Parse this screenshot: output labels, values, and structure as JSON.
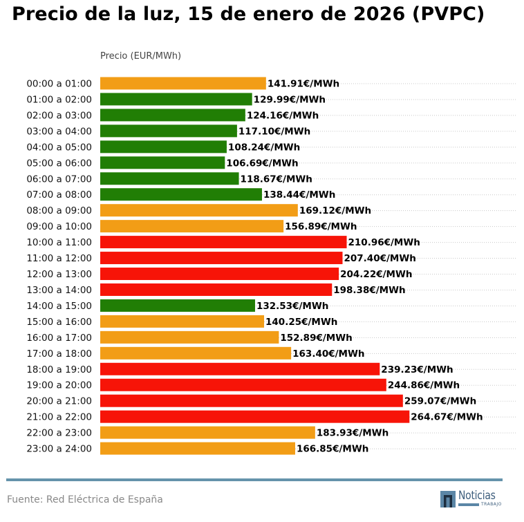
{
  "chart_data": {
    "type": "bar",
    "orientation": "horizontal",
    "title": "Precio de la luz, 15 de enero de 2026 (PVPC)",
    "xlabel": "Precio (EUR/MWh)",
    "ylabel": "",
    "xlim": [
      0,
      356
    ],
    "grid": "dotted horizontal",
    "value_suffix": "€/MWh",
    "categories": [
      "00:00 a 01:00",
      "01:00 a 02:00",
      "02:00 a 03:00",
      "03:00 a 04:00",
      "04:00 a 05:00",
      "05:00 a 06:00",
      "06:00 a 07:00",
      "07:00 a 08:00",
      "08:00 a 09:00",
      "09:00 a 10:00",
      "10:00 a 11:00",
      "11:00 a 12:00",
      "12:00 a 13:00",
      "13:00 a 14:00",
      "14:00 a 15:00",
      "15:00 a 16:00",
      "16:00 a 17:00",
      "17:00 a 18:00",
      "18:00 a 19:00",
      "19:00 a 20:00",
      "20:00 a 21:00",
      "21:00 a 22:00",
      "22:00 a 23:00",
      "23:00 a 24:00"
    ],
    "values": [
      141.91,
      129.99,
      124.16,
      117.1,
      108.24,
      106.69,
      118.67,
      138.44,
      169.12,
      156.89,
      210.96,
      207.4,
      204.22,
      198.38,
      132.53,
      140.25,
      152.89,
      163.4,
      239.23,
      244.86,
      259.07,
      264.67,
      183.93,
      166.85
    ],
    "data_labels": [
      "141.91€/MWh",
      "129.99€/MWh",
      "124.16€/MWh",
      "117.10€/MWh",
      "108.24€/MWh",
      "106.69€/MWh",
      "118.67€/MWh",
      "138.44€/MWh",
      "169.12€/MWh",
      "156.89€/MWh",
      "210.96€/MWh",
      "207.40€/MWh",
      "204.22€/MWh",
      "198.38€/MWh",
      "132.53€/MWh",
      "140.25€/MWh",
      "152.89€/MWh",
      "163.40€/MWh",
      "239.23€/MWh",
      "244.86€/MWh",
      "259.07€/MWh",
      "264.67€/MWh",
      "183.93€/MWh",
      "166.85€/MWh"
    ],
    "levels": [
      "medium",
      "low",
      "low",
      "low",
      "low",
      "low",
      "low",
      "low",
      "medium",
      "medium",
      "high",
      "high",
      "high",
      "high",
      "low",
      "medium",
      "medium",
      "medium",
      "high",
      "high",
      "high",
      "high",
      "medium",
      "medium"
    ],
    "level_colors": {
      "low": "#217e05",
      "medium": "#f29d16",
      "high": "#f71408"
    }
  },
  "footer": {
    "source": "Fuente: Red Eléctrica de España",
    "logo_name": "Noticias",
    "logo_sub": "TRABAJO"
  },
  "colors": {
    "divider": "#6593ab",
    "logo": "#5b86a6"
  }
}
